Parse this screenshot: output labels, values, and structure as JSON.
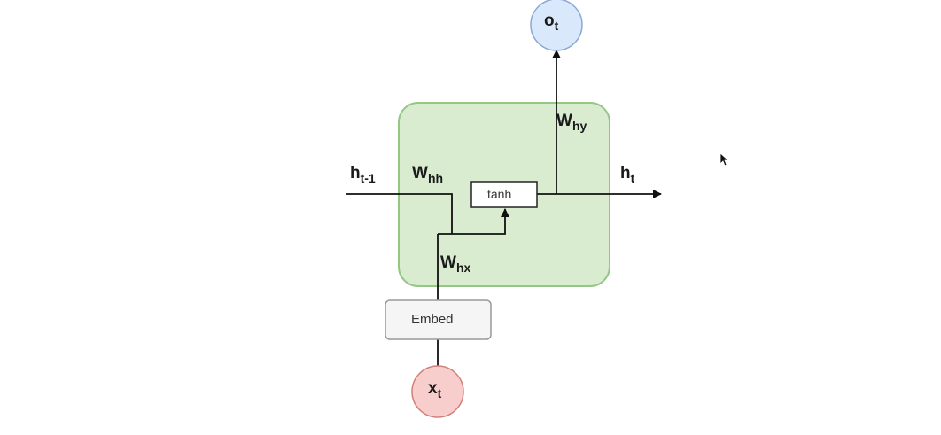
{
  "colors": {
    "cell_fill": "#d9ecd0",
    "cell_stroke": "#94c882",
    "output_fill": "#dae8fc",
    "output_stroke": "#8aa7d6",
    "input_fill": "#f8cecc",
    "input_stroke": "#d0807c",
    "box_fill": "#ffffff",
    "embed_fill": "#f5f5f5",
    "embed_stroke": "#9a9a9a",
    "line": "#111111"
  },
  "nodes": {
    "output": {
      "main": "o",
      "sub": "t"
    },
    "input": {
      "main": "x",
      "sub": "t"
    },
    "tanh": "tanh",
    "embed": "Embed"
  },
  "edges": {
    "h_prev": {
      "main": "h",
      "sub": "t-1"
    },
    "h_next": {
      "main": "h",
      "sub": "t"
    },
    "w_hh": {
      "main": "W",
      "sub": "hh"
    },
    "w_hx": {
      "main": "W",
      "sub": "hx"
    },
    "w_hy": {
      "main": "W",
      "sub": "hy"
    }
  },
  "icons": {
    "cursor": "mouse-pointer-icon"
  }
}
